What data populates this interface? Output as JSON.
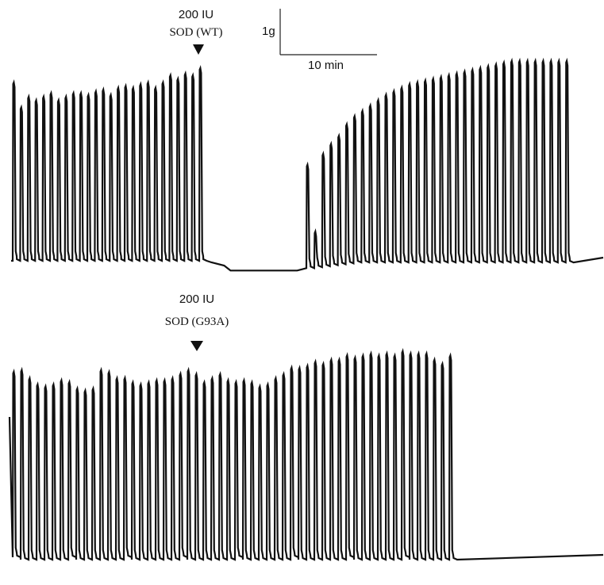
{
  "figure": {
    "scale_bar": {
      "force_label": "1g",
      "time_label": "10 min",
      "force_value_g": 1,
      "time_value_min": 10
    },
    "panels": [
      {
        "dose_label": "200 IU",
        "agent_label": "SOD (WT)"
      },
      {
        "dose_label": "200 IU",
        "agent_label": "SOD (G93A)"
      }
    ]
  },
  "chart_data": [
    {
      "type": "line",
      "title": "",
      "annotation": [
        "200 IU",
        "SOD (WT)"
      ],
      "xlabel": "",
      "ylabel": "",
      "units": {
        "x": "min",
        "y": "g"
      },
      "scale_bar": {
        "x_min": 10,
        "y_g": 1
      },
      "grid": false,
      "series": [
        {
          "description": "contraction peaks (g above baseline), evenly paced",
          "peaks": [
            1.0,
            0.86,
            0.92,
            0.9,
            0.92,
            0.94,
            0.9,
            0.92,
            0.94,
            0.94,
            0.93,
            0.95,
            0.96,
            0.93,
            0.97,
            0.98,
            0.97,
            0.99,
            1.0,
            0.97,
            1.0,
            1.04,
            1.02,
            1.05,
            1.04,
            1.08
          ],
          "injection_after_peak": 26,
          "arrest": {
            "duration_peaks": 8,
            "baseline_drop_g": 0.05
          },
          "recovery_peaks": [
            0.58,
            0.2,
            0.63,
            0.68,
            0.72,
            0.78,
            0.82,
            0.85,
            0.88,
            0.91,
            0.94,
            0.96,
            0.98,
            1.0,
            1.01,
            1.02,
            1.03,
            1.04,
            1.05,
            1.06,
            1.07,
            1.08,
            1.09,
            1.1,
            1.11,
            1.12,
            1.13,
            1.13,
            1.13,
            1.13,
            1.13,
            1.13,
            1.13,
            1.13
          ]
        }
      ]
    },
    {
      "type": "line",
      "title": "",
      "annotation": [
        "200 IU",
        "SOD (G93A)"
      ],
      "xlabel": "",
      "ylabel": "",
      "units": {
        "x": "min",
        "y": "g"
      },
      "grid": false,
      "series": [
        {
          "description": "contraction peaks (g above baseline), no arrest after injection",
          "peaks": [
            0.9,
            0.92,
            0.88,
            0.85,
            0.84,
            0.85,
            0.87,
            0.85,
            0.83,
            0.82,
            0.83,
            0.92,
            0.91,
            0.88,
            0.87,
            0.86,
            0.85,
            0.86,
            0.87,
            0.87,
            0.88,
            0.89,
            0.92,
            0.9,
            0.86,
            0.88,
            0.9,
            0.87,
            0.85,
            0.87,
            0.86,
            0.84,
            0.85,
            0.88,
            0.9,
            0.92,
            0.93,
            0.94,
            0.96,
            0.95,
            0.97,
            0.97,
            0.98,
            0.98,
            0.99,
            1.0,
            0.99,
            1.0,
            0.99,
            1.0,
            1.0,
            1.0,
            1.0,
            0.97,
            0.95,
            0.99
          ],
          "injection_after_peak": 21
        }
      ]
    }
  ]
}
